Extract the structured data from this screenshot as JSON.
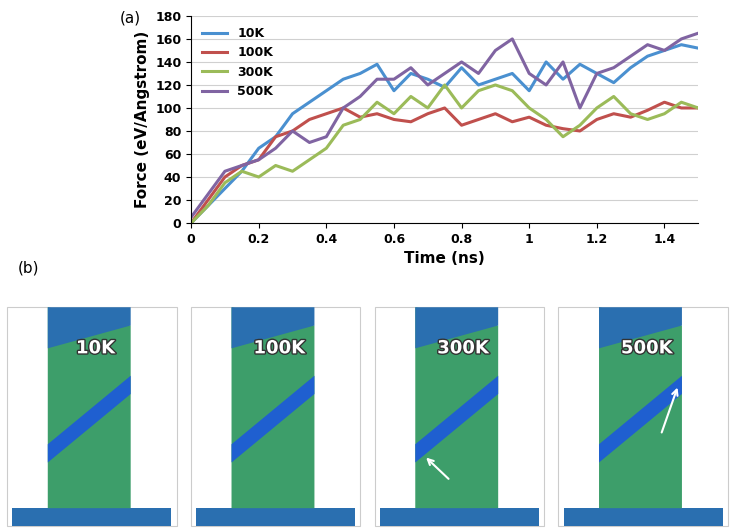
{
  "chart_data": {
    "type": "line",
    "x_label": "Time (ns)",
    "y_label": "Force (eV/Angstrom)",
    "x": [
      0.0,
      0.05,
      0.1,
      0.15,
      0.2,
      0.25,
      0.3,
      0.35,
      0.4,
      0.45,
      0.5,
      0.55,
      0.6,
      0.65,
      0.7,
      0.75,
      0.8,
      0.85,
      0.9,
      0.95,
      1.0,
      1.05,
      1.1,
      1.15,
      1.2,
      1.25,
      1.3,
      1.35,
      1.4,
      1.45,
      1.5
    ],
    "series": [
      {
        "name": "10K",
        "color": "#4a90d0",
        "values": [
          0,
          15,
          30,
          45,
          65,
          75,
          95,
          105,
          115,
          125,
          130,
          138,
          115,
          130,
          125,
          118,
          135,
          120,
          125,
          130,
          115,
          140,
          125,
          138,
          130,
          122,
          135,
          145,
          150,
          155,
          152
        ]
      },
      {
        "name": "100K",
        "color": "#c0504d",
        "values": [
          0,
          20,
          40,
          50,
          55,
          75,
          80,
          90,
          95,
          100,
          92,
          95,
          90,
          88,
          95,
          100,
          85,
          90,
          95,
          88,
          92,
          85,
          82,
          80,
          90,
          95,
          92,
          98,
          105,
          100,
          100
        ]
      },
      {
        "name": "300K",
        "color": "#9bbb59",
        "values": [
          0,
          15,
          35,
          45,
          40,
          50,
          45,
          55,
          65,
          85,
          90,
          105,
          95,
          110,
          100,
          120,
          100,
          115,
          120,
          115,
          100,
          90,
          75,
          85,
          100,
          110,
          95,
          90,
          95,
          105,
          100
        ]
      },
      {
        "name": "500K",
        "color": "#8064a2",
        "values": [
          5,
          25,
          45,
          50,
          55,
          65,
          80,
          70,
          75,
          100,
          110,
          125,
          125,
          135,
          120,
          130,
          140,
          130,
          150,
          160,
          130,
          120,
          140,
          100,
          130,
          135,
          145,
          155,
          150,
          160,
          165
        ]
      }
    ],
    "xlim": [
      0,
      1.5
    ],
    "xticks": [
      0,
      0.2,
      0.4,
      0.6,
      0.8,
      1,
      1.2,
      1.4
    ],
    "ylim": [
      0,
      180
    ],
    "yticks": [
      0,
      20,
      40,
      60,
      80,
      100,
      120,
      140,
      160,
      180
    ],
    "grid": true,
    "legend": "upper left"
  },
  "panel_labels": [
    "(a)",
    "(b)"
  ],
  "snapshots": [
    "10K",
    "100K",
    "300K",
    "500K"
  ]
}
